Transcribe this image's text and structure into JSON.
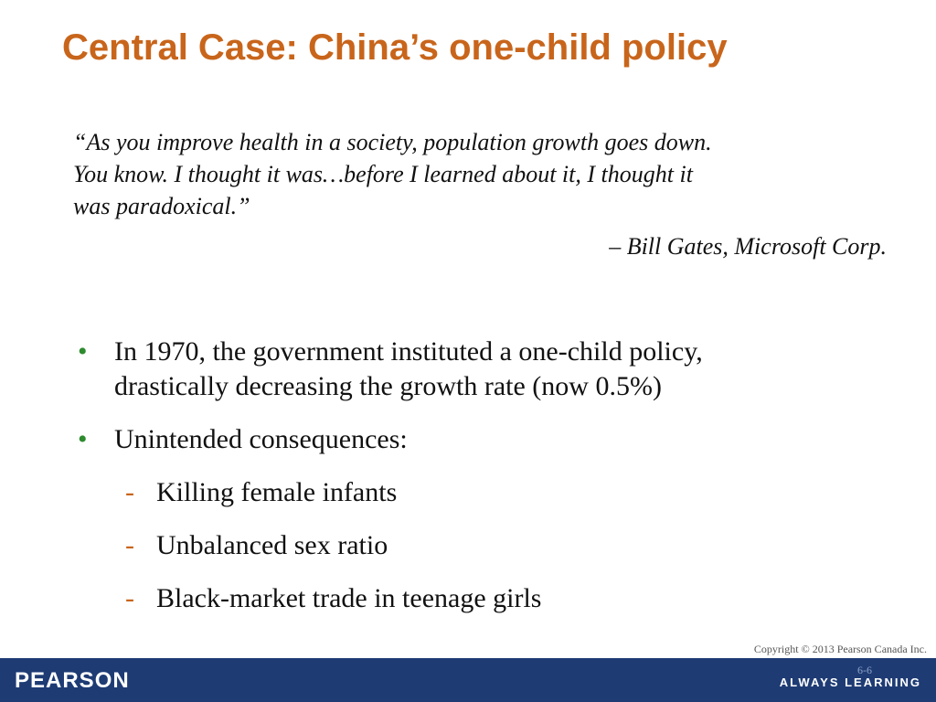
{
  "slide": {
    "title": "Central Case: China’s one-child policy",
    "quote": {
      "lines": [
        "“As you improve health in a society, population growth goes down.",
        "You know. I thought it was…before I learned about it, I thought it",
        "was paradoxical.”"
      ],
      "attribution": "– Bill Gates, Microsoft Corp."
    },
    "bullet_marker": "•",
    "sub_marker": "-",
    "bullets": [
      {
        "lines": [
          "In 1970, the government instituted a one-child policy,",
          "drastically decreasing the growth rate (now 0.5%)"
        ]
      },
      {
        "lines": [
          "Unintended consequences:"
        ],
        "subitems": [
          "Killing female infants",
          "Unbalanced sex ratio",
          "Black-market trade in teenage girls"
        ]
      }
    ]
  },
  "footer": {
    "copyright": "Copyright © 2013 Pearson Canada Inc.",
    "page_number": "6-6",
    "logo": "PEARSON",
    "tagline": "ALWAYS LEARNING",
    "bar_color": "#1e3b74"
  },
  "colors": {
    "title": "#c8651b",
    "bullet": "#2d8a2d",
    "sub_marker": "#c8651b"
  }
}
